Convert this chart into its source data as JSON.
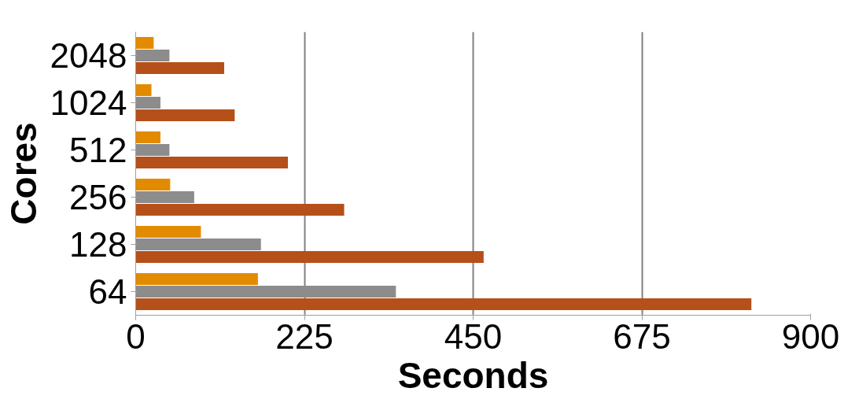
{
  "chart_data": {
    "type": "bar",
    "orientation": "horizontal",
    "xlabel": "Seconds",
    "ylabel": "Cores",
    "categories": [
      "2048",
      "1024",
      "512",
      "256",
      "128",
      "64"
    ],
    "series": [
      {
        "color": "#e38b00",
        "values": [
          24,
          21,
          33,
          46,
          87,
          163
        ]
      },
      {
        "color": "#8c8c8c",
        "values": [
          45,
          33,
          45,
          78,
          167,
          347
        ]
      },
      {
        "color": "#b5501a",
        "values": [
          118,
          132,
          203,
          278,
          464,
          821
        ]
      }
    ],
    "xlim": [
      0,
      900
    ],
    "xticks": [
      0,
      225,
      450,
      675,
      900
    ],
    "grid": "x"
  }
}
